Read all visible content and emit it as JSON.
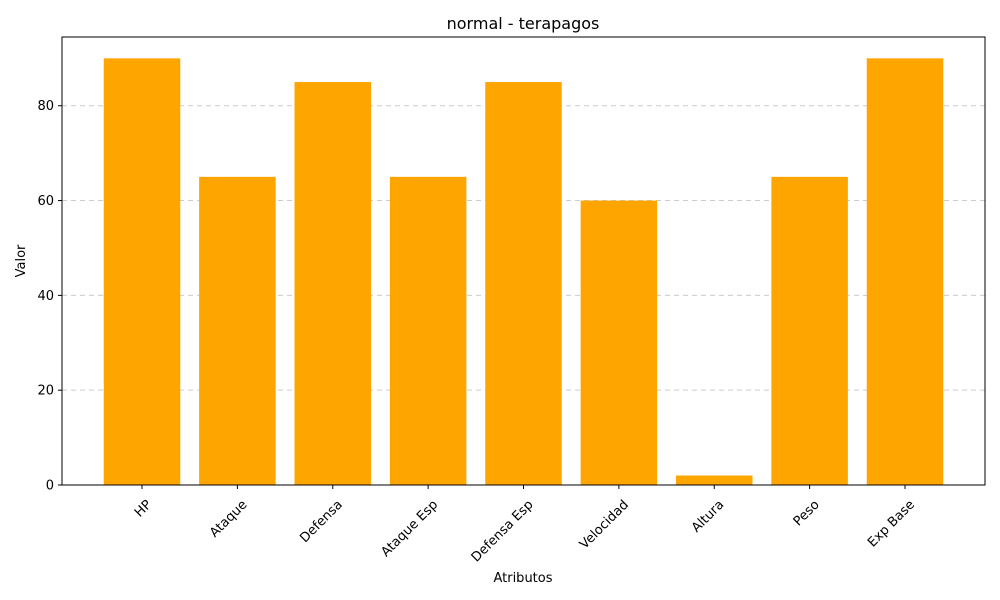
{
  "chart_data": {
    "type": "bar",
    "title": "normal - terapagos",
    "xlabel": "Atributos",
    "ylabel": "Valor",
    "categories": [
      "HP",
      "Ataque",
      "Defensa",
      "Ataque Esp",
      "Defensa Esp",
      "Velocidad",
      "Altura",
      "Peso",
      "Exp Base"
    ],
    "values": [
      90,
      65,
      85,
      65,
      85,
      60,
      2,
      65,
      90
    ],
    "ylim": [
      0,
      94.5
    ],
    "yticks": [
      0,
      20,
      40,
      60,
      80
    ],
    "grid": "y-dashed",
    "bar_color": "#FFA500",
    "x_tick_rotation": 45
  }
}
